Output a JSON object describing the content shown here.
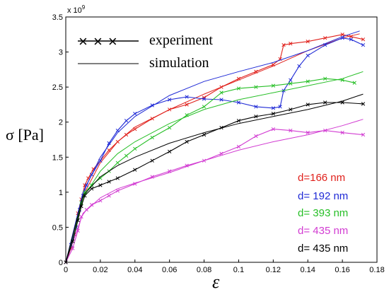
{
  "chart_data": {
    "type": "line",
    "xlabel": "ε",
    "ylabel": "σ [Pa]",
    "y_exponent_label": "x 10",
    "y_exponent_power": "9",
    "xlim": [
      0,
      0.18
    ],
    "ylim": [
      0,
      3.5
    ],
    "x_ticks": [
      "0",
      "0.02",
      "0.04",
      "0.06",
      "0.08",
      "0.1",
      "0.12",
      "0.14",
      "0.16",
      "0.18"
    ],
    "y_ticks": [
      "0",
      "0.5",
      "1",
      "1.5",
      "2",
      "2.5",
      "3",
      "3.5"
    ],
    "x_tick_values": [
      0,
      0.02,
      0.04,
      0.06,
      0.08,
      0.1,
      0.12,
      0.14,
      0.16,
      0.18
    ],
    "y_tick_values": [
      0,
      0.5,
      1,
      1.5,
      2,
      2.5,
      3,
      3.5
    ],
    "grid": false,
    "legend": {
      "placement": "top-left",
      "experiment": "experiment",
      "simulation": "simulation",
      "experiment_marker": "× × ×"
    },
    "series": [
      {
        "name": "d=166 nm",
        "color": "#e0201b",
        "experiment": [
          [
            0,
            0
          ],
          [
            0.003,
            0.2
          ],
          [
            0.005,
            0.4
          ],
          [
            0.007,
            0.7
          ],
          [
            0.009,
            0.9
          ],
          [
            0.011,
            1.1
          ],
          [
            0.013,
            1.2
          ],
          [
            0.016,
            1.33
          ],
          [
            0.02,
            1.45
          ],
          [
            0.025,
            1.6
          ],
          [
            0.03,
            1.72
          ],
          [
            0.035,
            1.82
          ],
          [
            0.04,
            1.9
          ],
          [
            0.05,
            2.05
          ],
          [
            0.06,
            2.18
          ],
          [
            0.07,
            2.25
          ],
          [
            0.08,
            2.35
          ],
          [
            0.09,
            2.5
          ],
          [
            0.1,
            2.62
          ],
          [
            0.11,
            2.72
          ],
          [
            0.12,
            2.82
          ],
          [
            0.124,
            2.9
          ],
          [
            0.126,
            3.1
          ],
          [
            0.13,
            3.12
          ],
          [
            0.14,
            3.15
          ],
          [
            0.15,
            3.2
          ],
          [
            0.16,
            3.25
          ],
          [
            0.165,
            3.22
          ],
          [
            0.172,
            3.18
          ]
        ],
        "simulation": [
          [
            0,
            0
          ],
          [
            0.01,
            0.95
          ],
          [
            0.02,
            1.42
          ],
          [
            0.03,
            1.72
          ],
          [
            0.04,
            1.93
          ],
          [
            0.06,
            2.18
          ],
          [
            0.08,
            2.4
          ],
          [
            0.1,
            2.6
          ],
          [
            0.12,
            2.8
          ],
          [
            0.14,
            3.02
          ],
          [
            0.16,
            3.2
          ],
          [
            0.17,
            3.26
          ]
        ]
      },
      {
        "name": "d= 192 nm",
        "color": "#1f2ad6",
        "experiment": [
          [
            0,
            0
          ],
          [
            0.003,
            0.25
          ],
          [
            0.006,
            0.5
          ],
          [
            0.008,
            0.75
          ],
          [
            0.01,
            0.95
          ],
          [
            0.012,
            1.1
          ],
          [
            0.015,
            1.25
          ],
          [
            0.02,
            1.45
          ],
          [
            0.025,
            1.7
          ],
          [
            0.03,
            1.88
          ],
          [
            0.035,
            2.02
          ],
          [
            0.04,
            2.12
          ],
          [
            0.05,
            2.24
          ],
          [
            0.06,
            2.32
          ],
          [
            0.07,
            2.36
          ],
          [
            0.08,
            2.33
          ],
          [
            0.09,
            2.32
          ],
          [
            0.1,
            2.28
          ],
          [
            0.11,
            2.22
          ],
          [
            0.12,
            2.2
          ],
          [
            0.124,
            2.22
          ],
          [
            0.126,
            2.45
          ],
          [
            0.13,
            2.6
          ],
          [
            0.135,
            2.8
          ],
          [
            0.14,
            2.95
          ],
          [
            0.15,
            3.1
          ],
          [
            0.16,
            3.2
          ],
          [
            0.165,
            3.18
          ],
          [
            0.172,
            3.1
          ]
        ],
        "simulation": [
          [
            0,
            0
          ],
          [
            0.01,
            1.0
          ],
          [
            0.02,
            1.5
          ],
          [
            0.03,
            1.85
          ],
          [
            0.04,
            2.08
          ],
          [
            0.06,
            2.38
          ],
          [
            0.08,
            2.58
          ],
          [
            0.1,
            2.72
          ],
          [
            0.12,
            2.85
          ],
          [
            0.14,
            3.02
          ],
          [
            0.16,
            3.22
          ],
          [
            0.17,
            3.3
          ]
        ]
      },
      {
        "name": "d= 393 nm",
        "color": "#27bf27",
        "experiment": [
          [
            0,
            0
          ],
          [
            0.004,
            0.3
          ],
          [
            0.007,
            0.6
          ],
          [
            0.009,
            0.85
          ],
          [
            0.011,
            1.0
          ],
          [
            0.015,
            1.1
          ],
          [
            0.02,
            1.2
          ],
          [
            0.025,
            1.3
          ],
          [
            0.03,
            1.42
          ],
          [
            0.035,
            1.52
          ],
          [
            0.04,
            1.62
          ],
          [
            0.05,
            1.78
          ],
          [
            0.06,
            1.92
          ],
          [
            0.07,
            2.1
          ],
          [
            0.08,
            2.22
          ],
          [
            0.09,
            2.42
          ],
          [
            0.1,
            2.48
          ],
          [
            0.11,
            2.5
          ],
          [
            0.12,
            2.52
          ],
          [
            0.13,
            2.55
          ],
          [
            0.14,
            2.58
          ],
          [
            0.15,
            2.62
          ],
          [
            0.16,
            2.6
          ],
          [
            0.167,
            2.56
          ]
        ],
        "simulation": [
          [
            0,
            0
          ],
          [
            0.01,
            0.92
          ],
          [
            0.02,
            1.3
          ],
          [
            0.03,
            1.55
          ],
          [
            0.04,
            1.72
          ],
          [
            0.06,
            1.98
          ],
          [
            0.08,
            2.18
          ],
          [
            0.1,
            2.32
          ],
          [
            0.12,
            2.42
          ],
          [
            0.14,
            2.52
          ],
          [
            0.16,
            2.62
          ],
          [
            0.172,
            2.72
          ]
        ]
      },
      {
        "name": "d= 435 nm",
        "color": "#d23cd2",
        "experiment": [
          [
            0,
            0
          ],
          [
            0.004,
            0.2
          ],
          [
            0.007,
            0.45
          ],
          [
            0.009,
            0.65
          ],
          [
            0.012,
            0.75
          ],
          [
            0.015,
            0.82
          ],
          [
            0.02,
            0.88
          ],
          [
            0.025,
            0.95
          ],
          [
            0.03,
            1.02
          ],
          [
            0.04,
            1.12
          ],
          [
            0.05,
            1.22
          ],
          [
            0.06,
            1.3
          ],
          [
            0.07,
            1.38
          ],
          [
            0.08,
            1.45
          ],
          [
            0.09,
            1.55
          ],
          [
            0.1,
            1.65
          ],
          [
            0.11,
            1.8
          ],
          [
            0.12,
            1.9
          ],
          [
            0.13,
            1.88
          ],
          [
            0.14,
            1.85
          ],
          [
            0.15,
            1.88
          ],
          [
            0.16,
            1.85
          ],
          [
            0.172,
            1.82
          ]
        ],
        "simulation": [
          [
            0,
            0
          ],
          [
            0.01,
            0.7
          ],
          [
            0.02,
            0.92
          ],
          [
            0.03,
            1.05
          ],
          [
            0.04,
            1.13
          ],
          [
            0.06,
            1.28
          ],
          [
            0.08,
            1.45
          ],
          [
            0.1,
            1.6
          ],
          [
            0.12,
            1.72
          ],
          [
            0.14,
            1.82
          ],
          [
            0.16,
            1.95
          ],
          [
            0.172,
            2.04
          ]
        ]
      },
      {
        "name": "d= 435 nm",
        "color": "#000000",
        "experiment": [
          [
            0,
            0
          ],
          [
            0.004,
            0.3
          ],
          [
            0.007,
            0.6
          ],
          [
            0.009,
            0.8
          ],
          [
            0.011,
            0.95
          ],
          [
            0.015,
            1.05
          ],
          [
            0.02,
            1.1
          ],
          [
            0.025,
            1.15
          ],
          [
            0.03,
            1.2
          ],
          [
            0.04,
            1.32
          ],
          [
            0.05,
            1.45
          ],
          [
            0.06,
            1.58
          ],
          [
            0.07,
            1.72
          ],
          [
            0.08,
            1.82
          ],
          [
            0.09,
            1.92
          ],
          [
            0.1,
            2.02
          ],
          [
            0.11,
            2.08
          ],
          [
            0.12,
            2.12
          ],
          [
            0.13,
            2.18
          ],
          [
            0.14,
            2.25
          ],
          [
            0.15,
            2.28
          ],
          [
            0.16,
            2.28
          ],
          [
            0.172,
            2.26
          ]
        ],
        "simulation": [
          [
            0,
            0
          ],
          [
            0.01,
            0.95
          ],
          [
            0.02,
            1.22
          ],
          [
            0.03,
            1.38
          ],
          [
            0.04,
            1.5
          ],
          [
            0.06,
            1.7
          ],
          [
            0.08,
            1.85
          ],
          [
            0.1,
            1.98
          ],
          [
            0.12,
            2.08
          ],
          [
            0.14,
            2.18
          ],
          [
            0.16,
            2.3
          ],
          [
            0.172,
            2.4
          ]
        ]
      }
    ]
  }
}
